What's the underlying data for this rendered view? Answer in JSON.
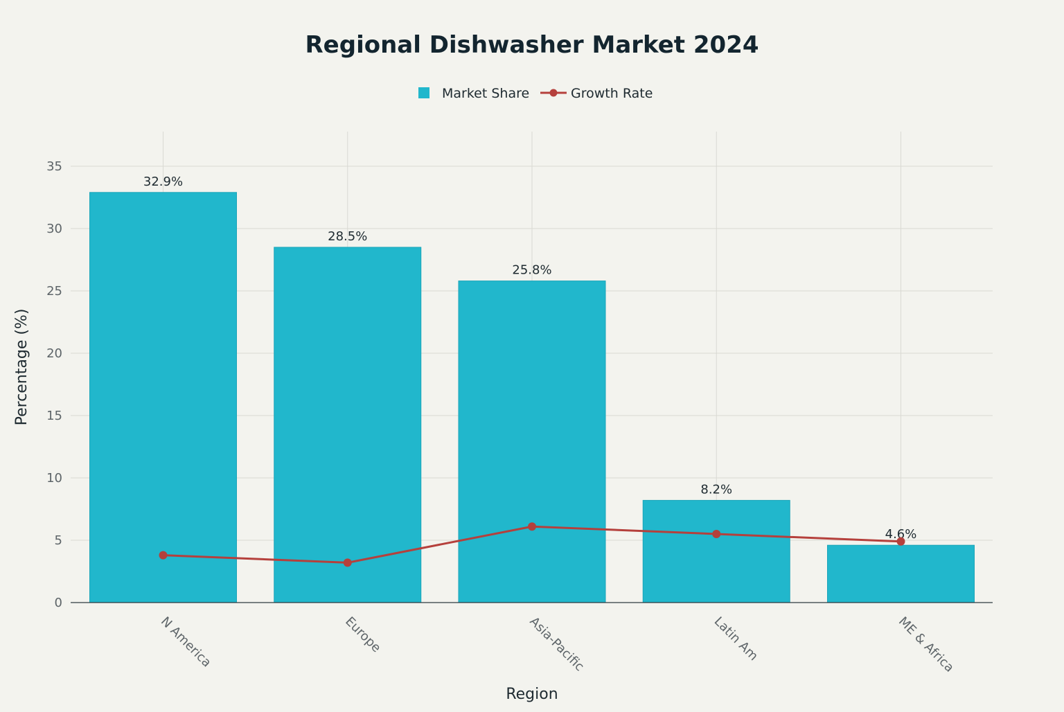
{
  "chart_data": {
    "type": "bar",
    "title": "Regional Dishwasher Market 2024",
    "xlabel": "Region",
    "ylabel": "Percentage (%)",
    "categories": [
      "N America",
      "Europe",
      "Asia-Pacific",
      "Latin Am",
      "ME & Africa"
    ],
    "ylim": [
      0,
      37
    ],
    "yticks": [
      0,
      5,
      10,
      15,
      20,
      25,
      30,
      35
    ],
    "grid": true,
    "legend_position": "top-center",
    "series": [
      {
        "name": "Market Share",
        "type": "bar",
        "color": "#21b7cc",
        "values": [
          32.9,
          28.5,
          25.8,
          8.2,
          4.6
        ],
        "data_labels": [
          "32.9%",
          "28.5%",
          "25.8%",
          "8.2%",
          "4.6%"
        ]
      },
      {
        "name": "Growth Rate",
        "type": "line",
        "color": "#b5403c",
        "values": [
          3.8,
          3.2,
          6.1,
          5.5,
          4.9
        ]
      }
    ]
  }
}
